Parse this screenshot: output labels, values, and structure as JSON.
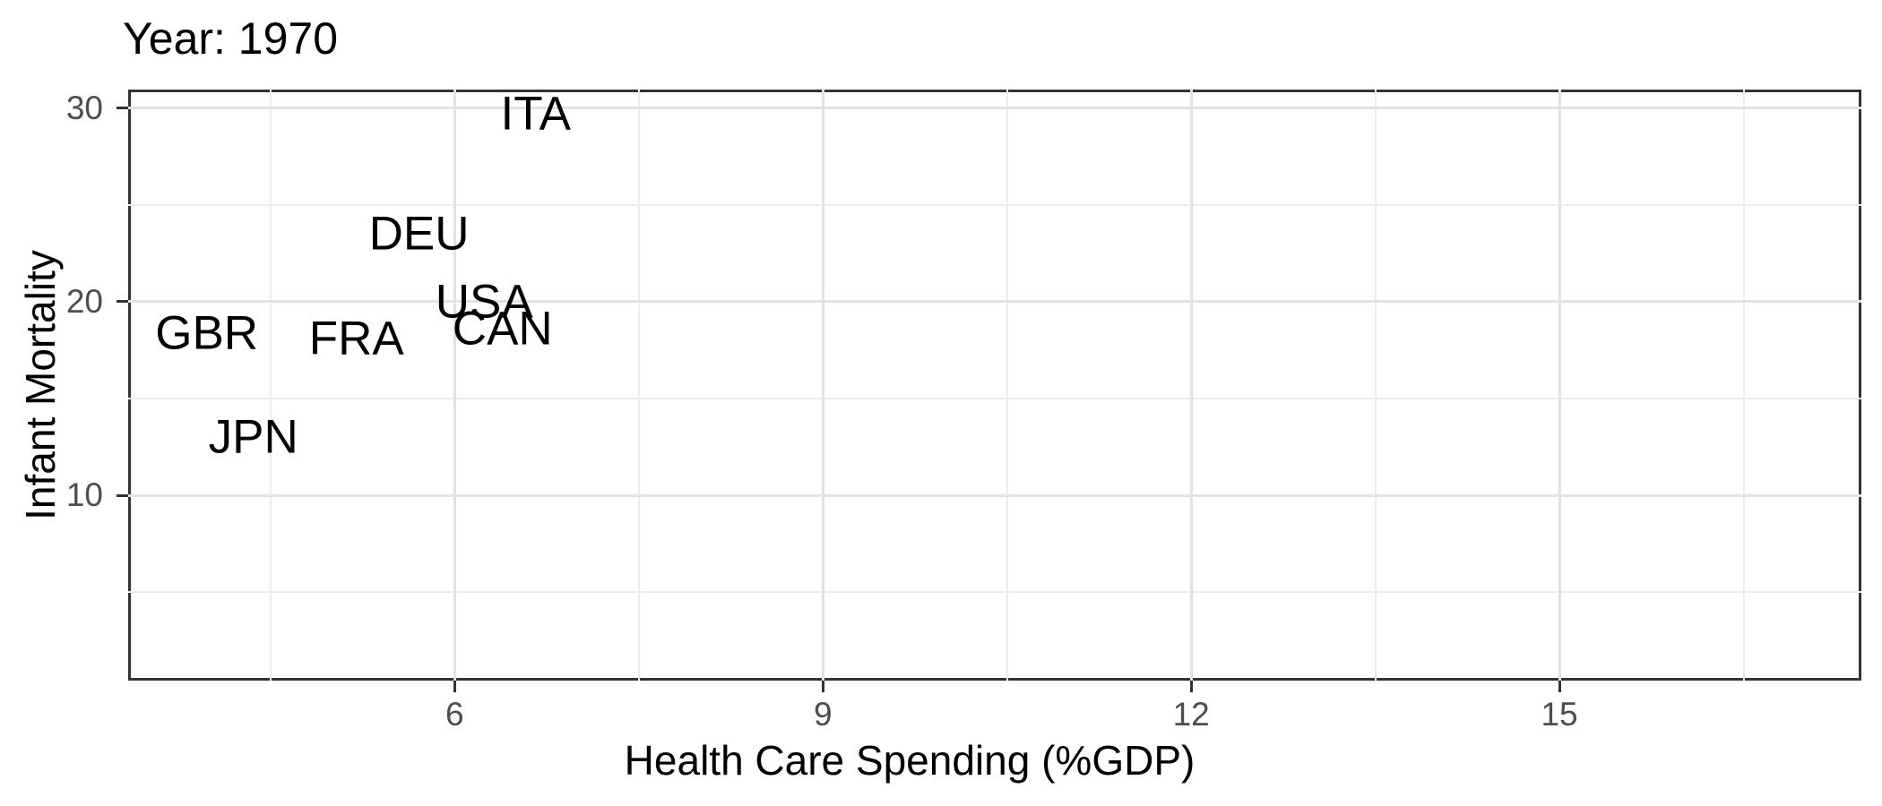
{
  "colors": {
    "background": "#ffffff",
    "panel_border": "#333333",
    "grid_major": "#e2e2e2",
    "grid_minor": "#ededed",
    "tick_mark": "#333333",
    "tick_label": "#4d4d4d",
    "label_text": "#000000"
  },
  "chart_data": {
    "type": "scatter",
    "title": "Year: 1970",
    "xlabel": "Health Care Spending (%GDP)",
    "ylabel": "Infant Mortality",
    "point_style": "text-label",
    "grid": "on",
    "legend": "none",
    "xlim": [
      3.34,
      17.46
    ],
    "ylim": [
      0.42,
      30.97
    ],
    "x_ticks": [
      6,
      9,
      12,
      15
    ],
    "x_minor_ticks": [
      4.5,
      7.5,
      10.5,
      13.5,
      16.5
    ],
    "y_ticks": [
      10,
      20,
      30
    ],
    "y_minor_ticks": [
      5,
      15,
      25
    ],
    "points": [
      {
        "label": "ITA",
        "x": 6.66,
        "y": 29.7
      },
      {
        "label": "DEU",
        "x": 5.71,
        "y": 23.5
      },
      {
        "label": "USA",
        "x": 6.24,
        "y": 20.0
      },
      {
        "label": "CAN",
        "x": 6.39,
        "y": 18.6
      },
      {
        "label": "GBR",
        "x": 3.98,
        "y": 18.4
      },
      {
        "label": "FRA",
        "x": 5.2,
        "y": 18.1
      },
      {
        "label": "JPN",
        "x": 4.36,
        "y": 13.0
      }
    ]
  }
}
